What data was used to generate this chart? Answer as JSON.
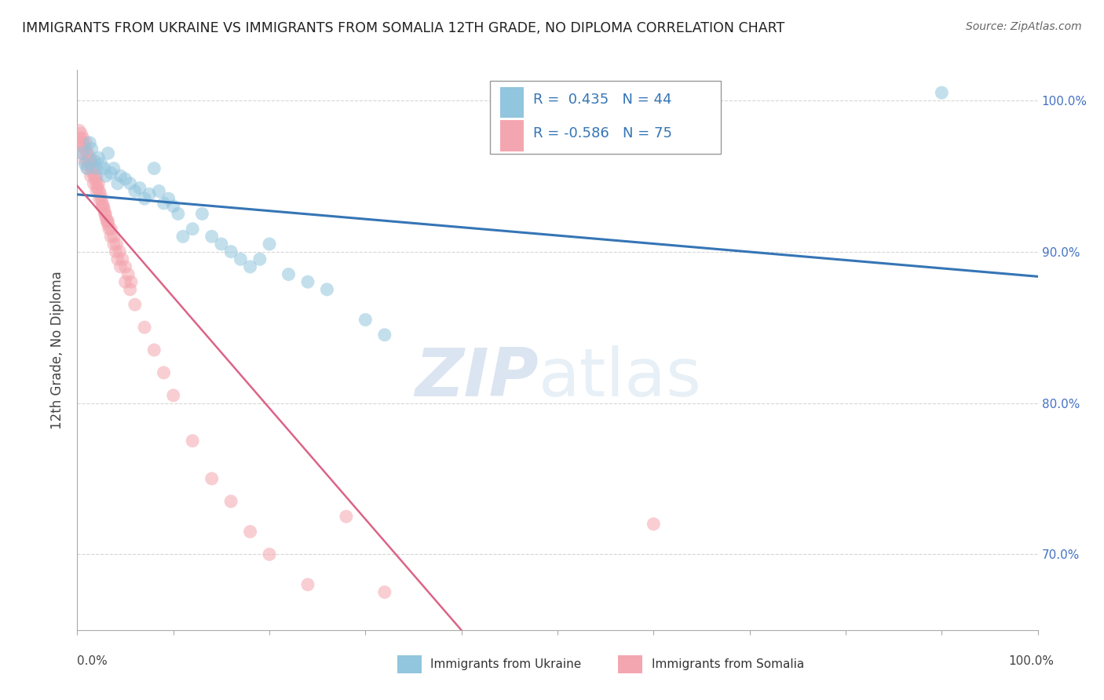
{
  "title": "IMMIGRANTS FROM UKRAINE VS IMMIGRANTS FROM SOMALIA 12TH GRADE, NO DIPLOMA CORRELATION CHART",
  "source": "Source: ZipAtlas.com",
  "ylabel": "12th Grade, No Diploma",
  "legend_ukraine": "Immigrants from Ukraine",
  "legend_somalia": "Immigrants from Somalia",
  "R_ukraine": 0.435,
  "N_ukraine": 44,
  "R_somalia": -0.586,
  "N_somalia": 75,
  "ukraine_color": "#92c5de",
  "somalia_color": "#f4a6b0",
  "ukraine_line_color": "#3575b5",
  "somalia_line_color": "#d9527a",
  "ukraine_x": [
    0.5,
    0.8,
    1.0,
    1.3,
    1.5,
    1.8,
    2.0,
    2.2,
    2.5,
    2.8,
    3.0,
    3.2,
    3.5,
    3.8,
    4.2,
    4.5,
    5.0,
    5.5,
    6.0,
    6.5,
    7.0,
    7.5,
    8.0,
    8.5,
    9.0,
    9.5,
    10.0,
    10.5,
    11.0,
    12.0,
    13.0,
    14.0,
    15.0,
    16.0,
    17.0,
    18.0,
    19.0,
    20.0,
    22.0,
    24.0,
    26.0,
    30.0,
    32.0,
    90.0
  ],
  "ukraine_y": [
    96.5,
    95.8,
    95.5,
    97.2,
    96.8,
    96.0,
    95.5,
    96.2,
    95.8,
    95.5,
    95.0,
    96.5,
    95.2,
    95.5,
    94.5,
    95.0,
    94.8,
    94.5,
    94.0,
    94.2,
    93.5,
    93.8,
    95.5,
    94.0,
    93.2,
    93.5,
    93.0,
    92.5,
    91.0,
    91.5,
    92.5,
    91.0,
    90.5,
    90.0,
    89.5,
    89.0,
    89.5,
    90.5,
    88.5,
    88.0,
    87.5,
    85.5,
    84.5,
    100.5
  ],
  "somalia_x": [
    0.2,
    0.3,
    0.4,
    0.5,
    0.6,
    0.7,
    0.8,
    0.9,
    1.0,
    1.0,
    1.1,
    1.2,
    1.3,
    1.4,
    1.5,
    1.5,
    1.6,
    1.7,
    1.8,
    1.9,
    2.0,
    2.0,
    2.1,
    2.2,
    2.3,
    2.4,
    2.5,
    2.6,
    2.7,
    2.8,
    2.9,
    3.0,
    3.1,
    3.2,
    3.3,
    3.5,
    3.8,
    4.0,
    4.2,
    4.5,
    5.0,
    5.5,
    6.0,
    7.0,
    8.0,
    9.0,
    10.0,
    12.0,
    14.0,
    16.0,
    18.0,
    20.0,
    24.0,
    28.0,
    32.0,
    0.3,
    0.5,
    0.8,
    1.1,
    1.4,
    1.7,
    2.0,
    2.3,
    2.6,
    2.9,
    3.2,
    3.5,
    3.8,
    4.1,
    4.4,
    4.7,
    5.0,
    5.3,
    5.6,
    60.0
  ],
  "somalia_y": [
    98.0,
    97.5,
    97.8,
    97.2,
    97.5,
    97.0,
    96.8,
    97.2,
    96.5,
    96.0,
    96.5,
    96.2,
    95.8,
    96.0,
    95.5,
    96.0,
    95.2,
    95.5,
    95.0,
    94.8,
    94.5,
    95.0,
    94.2,
    94.5,
    94.0,
    93.8,
    93.5,
    93.2,
    93.0,
    92.8,
    92.5,
    92.2,
    92.0,
    91.8,
    91.5,
    91.0,
    90.5,
    90.0,
    89.5,
    89.0,
    88.0,
    87.5,
    86.5,
    85.0,
    83.5,
    82.0,
    80.5,
    77.5,
    75.0,
    73.5,
    71.5,
    70.0,
    68.0,
    72.5,
    67.5,
    97.0,
    96.5,
    96.0,
    95.5,
    95.0,
    94.5,
    94.0,
    93.5,
    93.0,
    92.5,
    92.0,
    91.5,
    91.0,
    90.5,
    90.0,
    89.5,
    89.0,
    88.5,
    88.0,
    72.0
  ]
}
